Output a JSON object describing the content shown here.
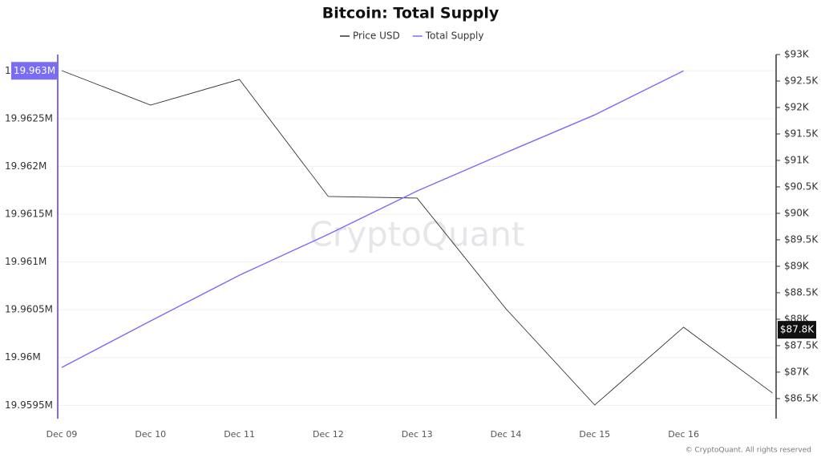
{
  "chart_data": {
    "type": "line",
    "title": "Bitcoin: Total Supply",
    "watermark": "CryptoQuant",
    "footer": "© CryptoQuant. All rights reserved",
    "categories": [
      "Dec 09",
      "Dec 10",
      "Dec 11",
      "Dec 12",
      "Dec 13",
      "Dec 14",
      "Dec 15",
      "Dec 16",
      null
    ],
    "series": [
      {
        "name": "Price USD",
        "color": "#333333",
        "axis": "y2",
        "values": [
          92697,
          92045,
          92530,
          90318,
          90288,
          88197,
          86379,
          87848,
          86606
        ]
      },
      {
        "name": "Total Supply",
        "color": "#7b6cf6",
        "values": [
          19959896,
          19960383,
          19960861,
          19961289,
          19961742,
          19962144,
          19962539,
          19963000,
          null
        ]
      }
    ],
    "ylim": [
      19959360,
      19963170
    ],
    "yticks": [
      {
        "value": 19959500,
        "label": "19.9595M"
      },
      {
        "value": 19960000,
        "label": "19.96M"
      },
      {
        "value": 19960500,
        "label": "19.9605M"
      },
      {
        "value": 19961000,
        "label": "19.961M"
      },
      {
        "value": 19961500,
        "label": "19.9615M"
      },
      {
        "value": 19962000,
        "label": "19.962M"
      },
      {
        "value": 19962500,
        "label": "19.9625M"
      },
      {
        "value": 19963000,
        "label": "19.963M"
      }
    ],
    "y2lim": [
      86120,
      93000
    ],
    "y2ticks": [
      {
        "value": 86500,
        "label": "$86.5K"
      },
      {
        "value": 87000,
        "label": "$87K"
      },
      {
        "value": 87500,
        "label": "$87.5K"
      },
      {
        "value": 88000,
        "label": "$88K"
      },
      {
        "value": 88500,
        "label": "$88.5K"
      },
      {
        "value": 89000,
        "label": "$89K"
      },
      {
        "value": 89500,
        "label": "$89.5K"
      },
      {
        "value": 90000,
        "label": "$90K"
      },
      {
        "value": 90500,
        "label": "$90.5K"
      },
      {
        "value": 91000,
        "label": "$91K"
      },
      {
        "value": 91500,
        "label": "$91.5K"
      },
      {
        "value": 92000,
        "label": "$92K"
      },
      {
        "value": 92500,
        "label": "$92.5K"
      },
      {
        "value": 93000,
        "label": "$93K"
      }
    ],
    "current_y_label": {
      "value": 19963000,
      "label": "19.963M"
    },
    "current_y2_label": {
      "value": 87800,
      "label": "$87.8K"
    },
    "grid": true
  }
}
